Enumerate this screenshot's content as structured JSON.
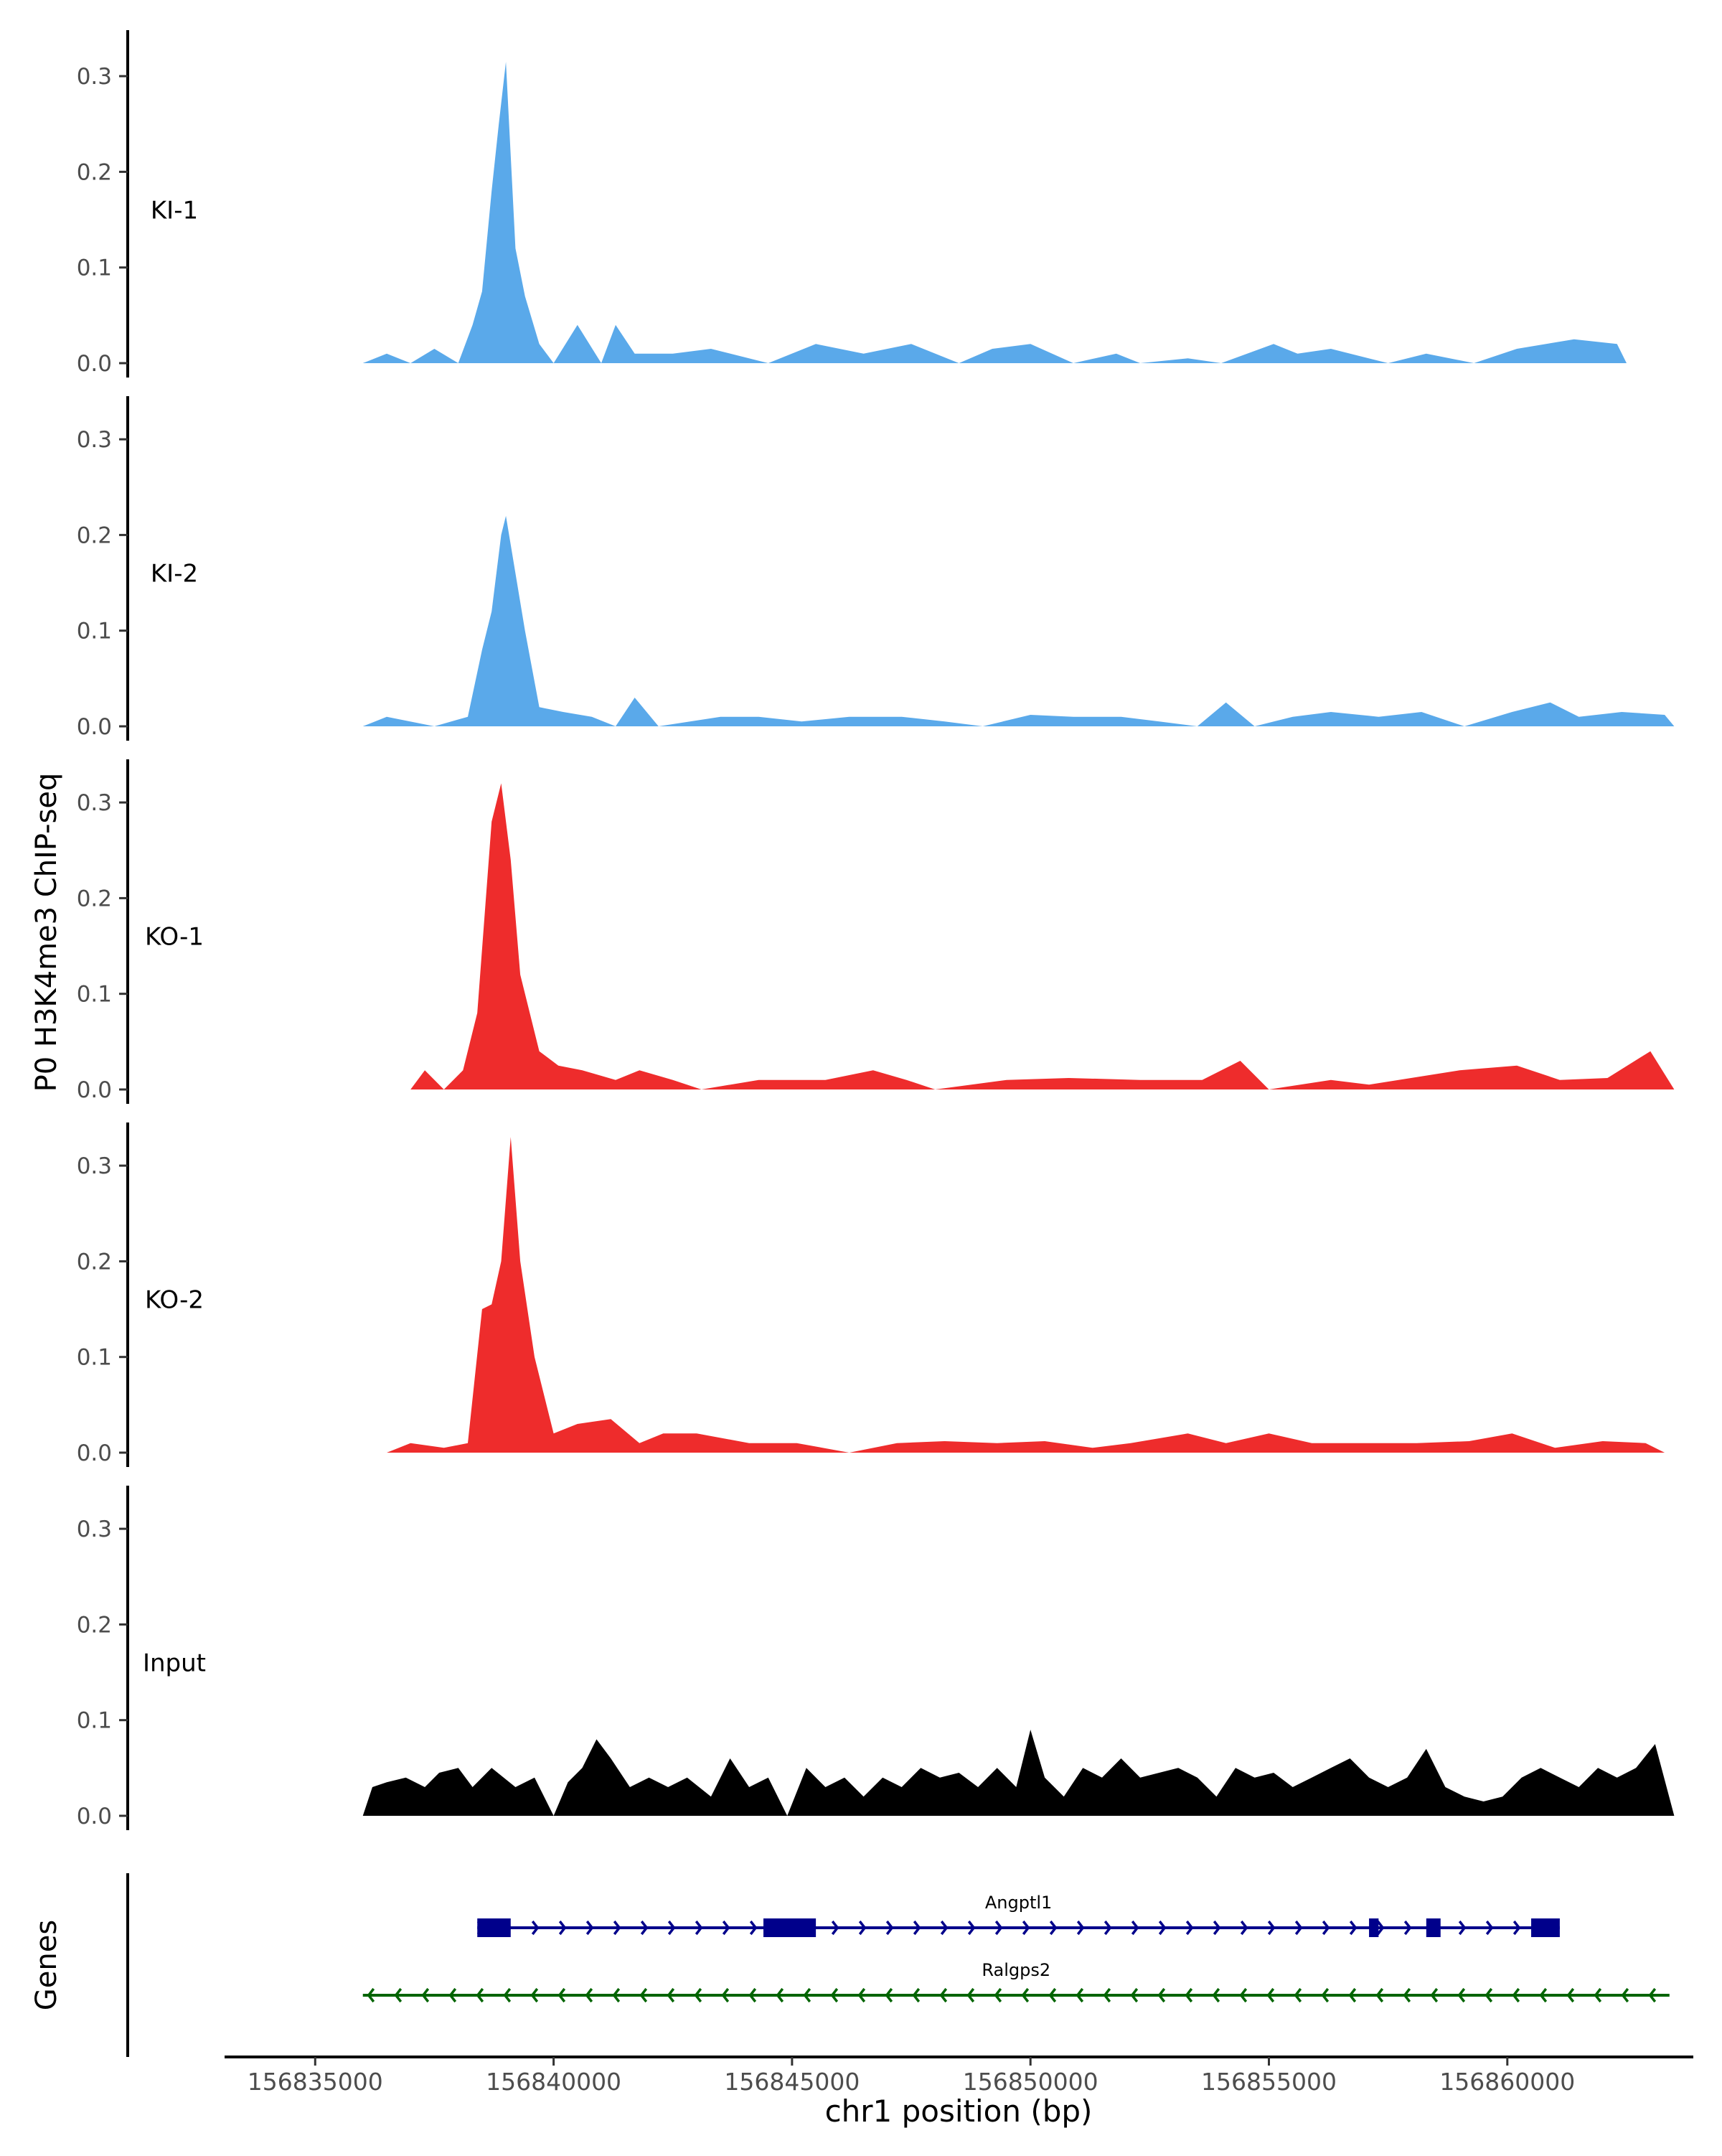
{
  "chart_data": {
    "type": "area",
    "ylabel": "P0 H3K4me3 ChIP-seq",
    "xlabel": "chr1 position (bp)",
    "colors": {
      "KI": "#5AA9EA",
      "KO": "#EE2C2C",
      "Input": "#000000",
      "gene1": "#00008B",
      "gene2": "#006400"
    },
    "xlim": [
      156833100,
      156863900
    ],
    "ylim": [
      0,
      0.36
    ],
    "y_ticks": [
      0.0,
      0.1,
      0.2,
      0.3
    ],
    "y_tick_labels": [
      "0.0",
      "0.1",
      "0.2",
      "0.3"
    ],
    "x_ticks": [
      156835000,
      156840000,
      156845000,
      156850000,
      156855000,
      156860000
    ],
    "x_tick_labels": [
      "156835000",
      "156840000",
      "156845000",
      "156850000",
      "156855000",
      "156860000"
    ],
    "tracks": [
      {
        "name": "KI-1",
        "color": "#5AA9EA",
        "x": [
          156836000,
          156836500,
          156837000,
          156837500,
          156838000,
          156838300,
          156838500,
          156838700,
          156838850,
          156839000,
          156839200,
          156839400,
          156839700,
          156840000,
          156840500,
          156841000,
          156841300,
          156841700,
          156842500,
          156843300,
          156844500,
          156845500,
          156846500,
          156847500,
          156848500,
          156849200,
          156850000,
          156850900,
          156851800,
          156852300,
          156853300,
          156854000,
          156855100,
          156855600,
          156856300,
          156857500,
          156858300,
          156859300,
          156860200,
          156861400,
          156862300,
          156862500
        ],
        "y": [
          0.0,
          0.01,
          0.0,
          0.015,
          0.0,
          0.04,
          0.075,
          0.18,
          0.25,
          0.315,
          0.12,
          0.07,
          0.02,
          0.0,
          0.04,
          0.0,
          0.04,
          0.01,
          0.01,
          0.015,
          0.0,
          0.02,
          0.01,
          0.02,
          0.0,
          0.015,
          0.02,
          0.0,
          0.01,
          0.0,
          0.005,
          0.0,
          0.02,
          0.01,
          0.015,
          0.0,
          0.01,
          0.0,
          0.015,
          0.025,
          0.02,
          0.0
        ]
      },
      {
        "name": "KI-2",
        "color": "#5AA9EA",
        "x": [
          156836000,
          156836500,
          156837500,
          156838200,
          156838500,
          156838700,
          156838900,
          156839000,
          156839200,
          156839400,
          156839700,
          156840200,
          156840800,
          156841300,
          156841700,
          156842200,
          156843500,
          156844300,
          156845200,
          156846200,
          156847300,
          156848200,
          156849000,
          156850000,
          156850900,
          156851900,
          156852700,
          156853500,
          156854100,
          156854700,
          156855500,
          156856300,
          156857300,
          156858200,
          156859100,
          156860100,
          156860900,
          156861500,
          156862400,
          156863300,
          156863500
        ],
        "y": [
          0.0,
          0.01,
          0.0,
          0.01,
          0.08,
          0.12,
          0.2,
          0.22,
          0.16,
          0.1,
          0.02,
          0.015,
          0.01,
          0.0,
          0.03,
          0.0,
          0.01,
          0.01,
          0.005,
          0.01,
          0.01,
          0.005,
          0.0,
          0.012,
          0.01,
          0.01,
          0.005,
          0.0,
          0.025,
          0.0,
          0.01,
          0.015,
          0.01,
          0.015,
          0.0,
          0.015,
          0.025,
          0.01,
          0.015,
          0.012,
          0.0
        ]
      },
      {
        "name": "KO-1",
        "color": "#EE2C2C",
        "x": [
          156837000,
          156837300,
          156837700,
          156838100,
          156838400,
          156838700,
          156838900,
          156839100,
          156839300,
          156839700,
          156840100,
          156840600,
          156841300,
          156841800,
          156842500,
          156843100,
          156844300,
          156845700,
          156846700,
          156847400,
          156848000,
          156849500,
          156850800,
          156852300,
          156853600,
          156854400,
          156855000,
          156856300,
          156857100,
          156859000,
          156860200,
          156861100,
          156862100,
          156863000,
          156863500
        ],
        "y": [
          0.0,
          0.02,
          0.0,
          0.02,
          0.08,
          0.28,
          0.32,
          0.24,
          0.12,
          0.04,
          0.025,
          0.02,
          0.01,
          0.02,
          0.01,
          0.0,
          0.01,
          0.01,
          0.02,
          0.01,
          0.0,
          0.01,
          0.012,
          0.01,
          0.01,
          0.03,
          0.0,
          0.01,
          0.005,
          0.02,
          0.025,
          0.01,
          0.012,
          0.04,
          0.0
        ]
      },
      {
        "name": "KO-2",
        "color": "#EE2C2C",
        "x": [
          156836500,
          156837000,
          156837700,
          156838200,
          156838500,
          156838700,
          156838900,
          156839100,
          156839300,
          156839600,
          156840000,
          156840500,
          156841200,
          156841800,
          156842300,
          156843000,
          156844100,
          156845100,
          156846200,
          156847200,
          156848200,
          156849300,
          156850300,
          156851300,
          156852100,
          156853300,
          156854100,
          156855000,
          156855900,
          156857200,
          156858100,
          156859200,
          156860100,
          156861000,
          156862000,
          156862900,
          156863300
        ],
        "y": [
          0.0,
          0.01,
          0.005,
          0.01,
          0.15,
          0.155,
          0.2,
          0.33,
          0.2,
          0.1,
          0.02,
          0.03,
          0.035,
          0.01,
          0.02,
          0.02,
          0.01,
          0.01,
          0.0,
          0.01,
          0.012,
          0.01,
          0.012,
          0.005,
          0.01,
          0.02,
          0.01,
          0.02,
          0.01,
          0.01,
          0.01,
          0.012,
          0.02,
          0.005,
          0.012,
          0.01,
          0.0
        ]
      },
      {
        "name": "Input",
        "color": "#000000",
        "x": [
          156836000,
          156836200,
          156836500,
          156836900,
          156837300,
          156837600,
          156838000,
          156838300,
          156838700,
          156839200,
          156839600,
          156840000,
          156840300,
          156840600,
          156840900,
          156841200,
          156841600,
          156842000,
          156842400,
          156842800,
          156843300,
          156843700,
          156844100,
          156844500,
          156844900,
          156845300,
          156845700,
          156846100,
          156846500,
          156846900,
          156847300,
          156847700,
          156848100,
          156848500,
          156848900,
          156849300,
          156849700,
          156850000,
          156850300,
          156850700,
          156851100,
          156851500,
          156851900,
          156852300,
          156852700,
          156853100,
          156853500,
          156853900,
          156854300,
          156854700,
          156855100,
          156855500,
          156855900,
          156856300,
          156856700,
          156857100,
          156857500,
          156857900,
          156858300,
          156858700,
          156859100,
          156859500,
          156859900,
          156860300,
          156860700,
          156861100,
          156861500,
          156861900,
          156862300,
          156862700,
          156863100,
          156863500
        ],
        "y": [
          0.0,
          0.03,
          0.035,
          0.04,
          0.03,
          0.045,
          0.05,
          0.03,
          0.05,
          0.03,
          0.04,
          0.0,
          0.035,
          0.05,
          0.08,
          0.06,
          0.03,
          0.04,
          0.03,
          0.04,
          0.02,
          0.06,
          0.03,
          0.04,
          0.0,
          0.05,
          0.03,
          0.04,
          0.02,
          0.04,
          0.03,
          0.05,
          0.04,
          0.045,
          0.03,
          0.05,
          0.03,
          0.09,
          0.04,
          0.02,
          0.05,
          0.04,
          0.06,
          0.04,
          0.045,
          0.05,
          0.04,
          0.02,
          0.05,
          0.04,
          0.045,
          0.03,
          0.04,
          0.05,
          0.06,
          0.04,
          0.03,
          0.04,
          0.07,
          0.03,
          0.02,
          0.015,
          0.02,
          0.04,
          0.05,
          0.04,
          0.03,
          0.05,
          0.04,
          0.05,
          0.075,
          0.0
        ]
      }
    ],
    "genes": [
      {
        "name": "Angptl1",
        "color": "#00008B",
        "strand": "+",
        "start": 156838400,
        "end": 156861100,
        "exons": [
          [
            156838400,
            156839100
          ],
          [
            156844400,
            156845500
          ],
          [
            156857100,
            156857300
          ],
          [
            156858300,
            156858600
          ],
          [
            156860500,
            156861100
          ]
        ]
      },
      {
        "name": "Ralgps2",
        "color": "#006400",
        "strand": "-",
        "start": 156836000,
        "end": 156863400,
        "exons": []
      }
    ],
    "gene_panel_label": "Genes"
  }
}
